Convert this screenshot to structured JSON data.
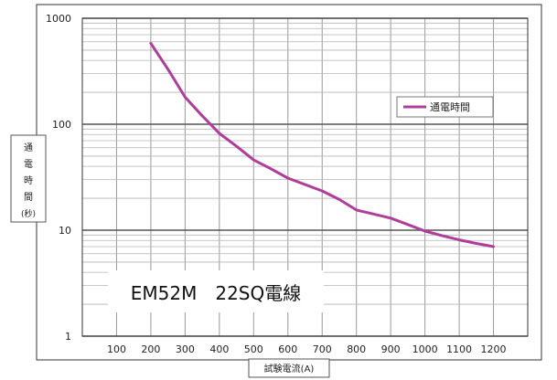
{
  "chart_data": {
    "type": "line",
    "ylabel": "通電時間(秒)",
    "xlabel": "試験電流(A)",
    "annotation": "EM52M　22SQ電線",
    "y_scale": "log",
    "ylim": [
      1,
      1000
    ],
    "xlim": [
      0,
      1300
    ],
    "x_ticks": [
      100,
      200,
      300,
      400,
      500,
      600,
      700,
      800,
      900,
      1000,
      1100,
      1200
    ],
    "y_ticks": [
      1,
      10,
      100,
      1000
    ],
    "grid": true,
    "legend_position": "right",
    "series": [
      {
        "name": "通電時間",
        "color": "#b03d9a",
        "x": [
          200,
          250,
          300,
          350,
          400,
          450,
          500,
          550,
          600,
          650,
          700,
          750,
          800,
          850,
          900,
          950,
          1000,
          1050,
          1100,
          1150,
          1200
        ],
        "y": [
          580,
          330,
          180,
          120,
          82,
          62,
          46,
          38,
          31,
          27,
          23.5,
          19.5,
          15.5,
          14.2,
          13,
          11.3,
          9.8,
          8.9,
          8.1,
          7.5,
          7
        ]
      }
    ]
  }
}
